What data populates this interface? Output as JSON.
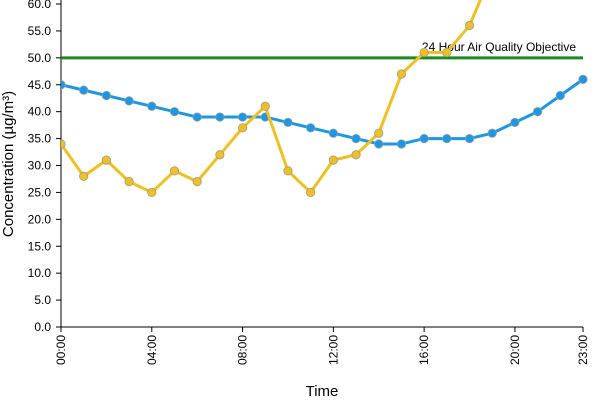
{
  "chart_data": {
    "type": "line",
    "title": "",
    "xlabel": "Time",
    "ylabel": "Concentration (µg/m³)",
    "x": [
      "00:00",
      "01:00",
      "02:00",
      "03:00",
      "04:00",
      "05:00",
      "06:00",
      "07:00",
      "08:00",
      "09:00",
      "10:00",
      "11:00",
      "12:00",
      "13:00",
      "14:00",
      "15:00",
      "16:00",
      "17:00",
      "18:00",
      "19:00",
      "20:00",
      "21:00",
      "22:00",
      "23:00"
    ],
    "x_tick_labels": [
      "00:00",
      "04:00",
      "08:00",
      "12:00",
      "16:00",
      "20:00",
      "23:00"
    ],
    "ylim": [
      0,
      60
    ],
    "y_tick_labels": [
      "0.0",
      "5.0",
      "10.0",
      "15.0",
      "20.0",
      "25.0",
      "30.0",
      "35.0",
      "40.0",
      "45.0",
      "50.0",
      "55.0",
      "60.0"
    ],
    "grid": false,
    "series": [
      {
        "color": "#1a98e6",
        "values": [
          45,
          44,
          43,
          42,
          41,
          40,
          39,
          39,
          39,
          39,
          38,
          37,
          36,
          35,
          34,
          34,
          35,
          35,
          35,
          36,
          38,
          40,
          43,
          46
        ]
      },
      {
        "color": "#f0c020",
        "values": [
          34,
          28,
          31,
          27,
          25,
          29,
          27,
          32,
          37,
          41,
          29,
          25,
          31,
          32,
          36,
          47,
          51,
          51,
          56,
          66,
          null,
          null,
          null,
          null
        ]
      }
    ],
    "reference_line": {
      "value": 50,
      "label": "24 Hour Air Quality Objective",
      "color": "#1e8a1e"
    }
  }
}
